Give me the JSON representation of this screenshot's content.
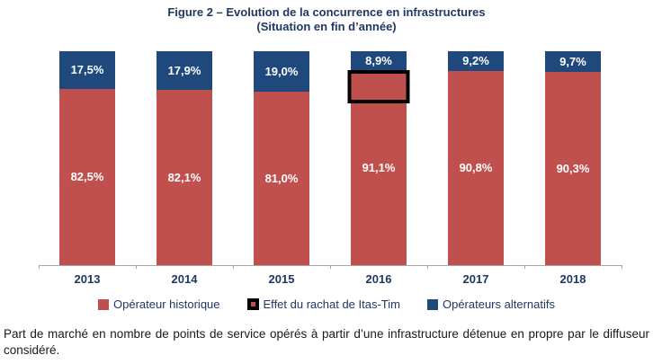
{
  "figure": {
    "title_line1": "Figure 2 – Evolution de la concurrence en infrastructures",
    "title_line2": "(Situation en fin d’année)"
  },
  "chart_data": {
    "type": "bar",
    "stacked": true,
    "title": "Figure 2 – Evolution de la concurrence en infrastructures (Situation en fin d’année)",
    "categories": [
      "2013",
      "2014",
      "2015",
      "2016",
      "2017",
      "2018"
    ],
    "series": [
      {
        "name": "Opérateur historique",
        "color": "#c0504d",
        "values": [
          82.5,
          82.1,
          81.0,
          91.1,
          90.8,
          90.3
        ],
        "labels": [
          "82,5%",
          "82,1%",
          "81,0%",
          "91,1%",
          "90,8%",
          "90,3%"
        ]
      },
      {
        "name": "Opérateurs alternatifs",
        "color": "#1f497d",
        "values": [
          17.5,
          17.9,
          19.0,
          8.9,
          9.2,
          9.7
        ],
        "labels": [
          "17,5%",
          "17,9%",
          "19,0%",
          "8,9%",
          "9,2%",
          "9,7%"
        ]
      }
    ],
    "annotation": {
      "name": "Effet du rachat de Itas-Tim",
      "category": "2016",
      "border_color": "#000000",
      "top_pct": 8.9,
      "height_pct": 15.5
    },
    "ylim": [
      0,
      100
    ],
    "unit": "%",
    "grid": false,
    "legend_position": "bottom"
  },
  "legend": {
    "items": [
      {
        "label": "Opérateur historique",
        "swatch": "red-square"
      },
      {
        "label": "Effet du rachat de Itas-Tim",
        "swatch": "black-bordered-red-square"
      },
      {
        "label": "Opérateurs alternatifs",
        "swatch": "blue-square"
      }
    ]
  },
  "caption": "Part de marché en nombre de points de service opérés à partir d’une infrastructure détenue en propre par le diffuseur considéré.",
  "colors": {
    "historic_red": "#c0504d",
    "alternative_blue": "#1f497d",
    "title_navy": "#1f3864",
    "axis_gray": "#a6a6a6",
    "annotation_black": "#000000"
  }
}
